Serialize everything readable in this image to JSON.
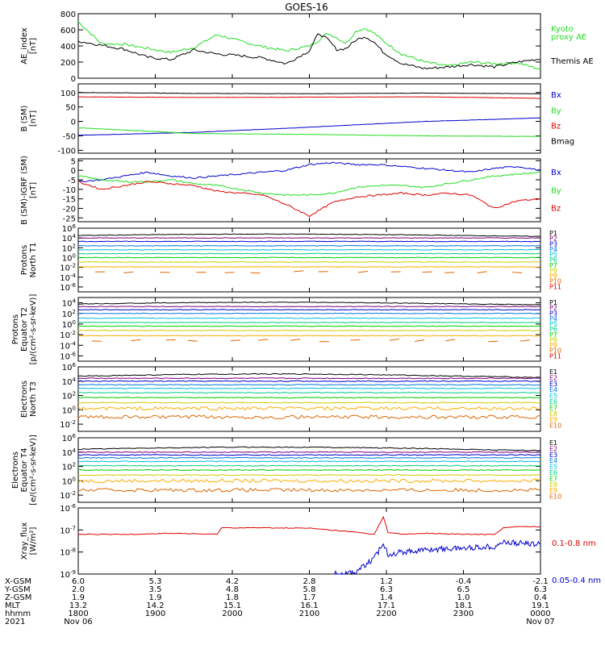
{
  "title": "GOES-16",
  "colors": {
    "black": "#000000",
    "green": "#22dd22",
    "blue": "#0000cc",
    "red": "#dd0000",
    "P": [
      "#000000",
      "#7a007a",
      "#0000cc",
      "#0077dd",
      "#00bbdd",
      "#00cc88",
      "#00cc00",
      "#cccc00",
      "#ffaa00",
      "#dd6600",
      "#dd0000"
    ],
    "E": [
      "#000000",
      "#7a007a",
      "#0000cc",
      "#0077dd",
      "#00bbdd",
      "#00cc88",
      "#00cc00",
      "#cccc00",
      "#ffaa00",
      "#dd6600",
      "#dd0000"
    ]
  },
  "chart_data": [
    {
      "type": "line",
      "id": "ae",
      "ylabel": [
        "AE_index",
        "[nT]"
      ],
      "ylim": [
        0,
        800
      ],
      "yticks": [
        "0",
        "200",
        "400",
        "600",
        "800"
      ],
      "legend": [
        {
          "text": "Kyoto",
          "color": "green"
        },
        {
          "text": "proxy AE",
          "color": "green"
        },
        {
          "text": "Themis AE",
          "color": "black"
        }
      ],
      "x": [
        0,
        0.05,
        0.1,
        0.15,
        0.2,
        0.25,
        0.3,
        0.35,
        0.4,
        0.45,
        0.5,
        0.52,
        0.54,
        0.56,
        0.58,
        0.6,
        0.62,
        0.64,
        0.66,
        0.68,
        0.7,
        0.75,
        0.8,
        0.85,
        0.9,
        0.95,
        1.0
      ],
      "series": [
        {
          "name": "Kyoto proxy AE",
          "color": "green",
          "values": [
            700,
            430,
            420,
            370,
            320,
            380,
            540,
            460,
            390,
            340,
            400,
            470,
            560,
            500,
            430,
            580,
            620,
            560,
            460,
            380,
            300,
            200,
            150,
            200,
            180,
            190,
            110
          ]
        },
        {
          "name": "Themis AE",
          "color": "black",
          "values": [
            460,
            410,
            360,
            260,
            230,
            350,
            300,
            280,
            250,
            180,
            340,
            560,
            480,
            350,
            370,
            470,
            520,
            450,
            320,
            250,
            180,
            120,
            140,
            170,
            140,
            200,
            240
          ]
        }
      ]
    },
    {
      "type": "line",
      "id": "bsm",
      "ylabel": [
        "B (SM)",
        "[nT]"
      ],
      "ylim": [
        -110,
        130
      ],
      "yticks": [
        "-100",
        "-50",
        "0",
        "50",
        "100"
      ],
      "ytick_values": [
        -100,
        -50,
        0,
        50,
        100
      ],
      "legend": [
        {
          "text": "Bx",
          "color": "blue"
        },
        {
          "text": "By",
          "color": "green"
        },
        {
          "text": "Bz",
          "color": "red"
        },
        {
          "text": "Bmag",
          "color": "black"
        }
      ],
      "x": [
        0,
        0.25,
        0.5,
        0.75,
        1.0
      ],
      "series": [
        {
          "name": "Bx",
          "color": "blue",
          "values": [
            -48,
            -38,
            -20,
            0,
            12
          ]
        },
        {
          "name": "By",
          "color": "green",
          "values": [
            -22,
            -42,
            -45,
            -50,
            -52
          ]
        },
        {
          "name": "Bz",
          "color": "red",
          "values": [
            85,
            83,
            84,
            85,
            80
          ]
        },
        {
          "name": "Bmag",
          "color": "black",
          "values": [
            100,
            97,
            96,
            98,
            96
          ]
        }
      ]
    },
    {
      "type": "line",
      "id": "bigrf",
      "ylabel": [
        "B (SM)-IGRF (SM)",
        "[nT]"
      ],
      "ylim": [
        -27,
        6
      ],
      "yticks": [
        "5",
        "0",
        "-5",
        "-10",
        "-15",
        "-20",
        "-25"
      ],
      "ytick_values": [
        5,
        0,
        -5,
        -10,
        -15,
        -20,
        -25
      ],
      "legend": [
        {
          "text": "Bx",
          "color": "blue"
        },
        {
          "text": "By",
          "color": "green"
        },
        {
          "text": "Bz",
          "color": "red"
        }
      ],
      "x": [
        0,
        0.05,
        0.1,
        0.15,
        0.2,
        0.25,
        0.3,
        0.35,
        0.4,
        0.45,
        0.5,
        0.55,
        0.6,
        0.65,
        0.7,
        0.75,
        0.8,
        0.85,
        0.9,
        0.95,
        1.0
      ],
      "series": [
        {
          "name": "Bx",
          "color": "blue",
          "values": [
            -6,
            -5,
            -3,
            -1,
            -3,
            -4,
            -3,
            -2,
            -1,
            0,
            3,
            4,
            3,
            3,
            2,
            1,
            0,
            -1,
            1,
            2,
            0
          ]
        },
        {
          "name": "By",
          "color": "green",
          "values": [
            -3,
            -5,
            -6,
            -6,
            -5,
            -7,
            -8,
            -10,
            -12,
            -13,
            -13,
            -12,
            -9,
            -8,
            -8,
            -9,
            -7,
            -5,
            -3,
            -2,
            -1
          ]
        },
        {
          "name": "Bz",
          "color": "red",
          "values": [
            -6,
            -10,
            -8,
            -6,
            -7,
            -8,
            -11,
            -12,
            -13,
            -18,
            -24,
            -17,
            -14,
            -13,
            -12,
            -13,
            -12,
            -13,
            -20,
            -16,
            -15
          ]
        }
      ]
    },
    {
      "type": "line",
      "id": "pn",
      "log": true,
      "ylabel": [
        "Protons",
        "North T1"
      ],
      "ylim_log": [
        -7,
        6
      ],
      "yticks_exp": [
        6,
        4,
        2,
        0,
        -2,
        -4,
        -6
      ],
      "legend": [
        "P1",
        "P2",
        "P3",
        "P4",
        "P5",
        "P6",
        "P7",
        "P8",
        "P9",
        "P10",
        "P11"
      ],
      "levels": [
        4.5,
        4.0,
        3.3,
        2.4,
        1.6,
        0.8,
        0.0,
        -0.9,
        -1.9,
        -3.0,
        -4.0
      ]
    },
    {
      "type": "line",
      "id": "pe",
      "log": true,
      "ylabel": [
        "Protons",
        "Equator T2",
        "[p/(cm²-s-sr-keV)]"
      ],
      "ylim_log": [
        -7,
        5
      ],
      "yticks_exp": [
        4,
        2,
        0,
        -2,
        -4,
        -6
      ],
      "legend": [
        "P1",
        "P2",
        "P3",
        "P4",
        "P5",
        "P6",
        "P7",
        "P8",
        "P9",
        "P10",
        "P11"
      ],
      "levels": [
        3.8,
        3.3,
        2.7,
        2.0,
        1.1,
        0.3,
        -0.4,
        -1.2,
        -2.2,
        -3.2,
        -4.2
      ]
    },
    {
      "type": "line",
      "id": "en",
      "log": true,
      "ylabel": [
        "Electrons",
        "North T3"
      ],
      "ylim_log": [
        -3,
        6
      ],
      "yticks_exp": [
        6,
        4,
        2,
        0,
        -2
      ],
      "legend": [
        "E1",
        "E2",
        "E3",
        "E4",
        "E5",
        "E6",
        "E7",
        "E8",
        "E9",
        "E10"
      ],
      "levels": [
        4.7,
        4.4,
        4.0,
        3.5,
        3.0,
        2.4,
        1.7,
        1.0,
        0.2,
        -1.0
      ]
    },
    {
      "type": "line",
      "id": "ee",
      "log": true,
      "ylabel": [
        "Electrons",
        "Equator T4",
        "[e/(cm²-s-sr-keV)]"
      ],
      "ylim_log": [
        -3,
        6
      ],
      "yticks_exp": [
        6,
        4,
        2,
        0,
        -2
      ],
      "legend": [
        "E1",
        "E2",
        "E3",
        "E4",
        "E5",
        "E6",
        "E7",
        "E8",
        "E9",
        "E10"
      ],
      "levels": [
        4.4,
        4.0,
        3.6,
        3.2,
        2.7,
        2.1,
        1.5,
        0.8,
        0.0,
        -1.3
      ]
    },
    {
      "type": "line",
      "id": "xray",
      "log": true,
      "ylabel": [
        "Xray_flux",
        "[W/m²]"
      ],
      "ylim_log": [
        -9,
        -6
      ],
      "yticks_exp": [
        -6,
        -7,
        -8,
        -9
      ],
      "legend": [
        {
          "text": "0.1-0.8 nm",
          "color": "red"
        },
        {
          "text": "0.05-0.4 nm",
          "color": "blue"
        }
      ],
      "x": [
        0,
        0.1,
        0.2,
        0.3,
        0.31,
        0.4,
        0.5,
        0.6,
        0.64,
        0.66,
        0.67,
        0.7,
        0.75,
        0.8,
        0.85,
        0.9,
        0.92,
        0.95,
        1.0
      ],
      "series": [
        {
          "name": "0.1-0.8 nm",
          "color": "red",
          "values": [
            -7.2,
            -7.2,
            -7.15,
            -7.2,
            -6.9,
            -6.9,
            -6.92,
            -7.1,
            -7.2,
            -6.4,
            -7.1,
            -7.2,
            -7.15,
            -7.18,
            -7.2,
            -7.2,
            -6.9,
            -6.85,
            -6.85
          ]
        },
        {
          "name": "0.05-0.4 nm",
          "color": "blue",
          "x": [
            0.55,
            0.6,
            0.64,
            0.66,
            0.67,
            0.7,
            0.75,
            0.8,
            0.85,
            0.9,
            0.92,
            0.95,
            1.0
          ],
          "values": [
            -9,
            -8.9,
            -8.3,
            -7.6,
            -8.1,
            -8.0,
            -7.9,
            -7.85,
            -7.8,
            -7.75,
            -7.55,
            -7.6,
            -7.65
          ]
        }
      ]
    }
  ],
  "ephemeris": {
    "labels": [
      "X-GSM",
      "Y-GSM",
      "Z-GSM",
      "MLT",
      "hhmm",
      "2021"
    ],
    "columns": [
      {
        "xgsm": "6.0",
        "ygsm": "2.0",
        "zgsm": "1.9",
        "mlt": "13.2",
        "hhmm": "1800",
        "date": "Nov 06"
      },
      {
        "xgsm": "5.3",
        "ygsm": "3.5",
        "zgsm": "1.9",
        "mlt": "14.2",
        "hhmm": "1900",
        "date": ""
      },
      {
        "xgsm": "4.2",
        "ygsm": "4.8",
        "zgsm": "1.8",
        "mlt": "15.1",
        "hhmm": "2000",
        "date": ""
      },
      {
        "xgsm": "2.8",
        "ygsm": "5.8",
        "zgsm": "1.7",
        "mlt": "16.1",
        "hhmm": "2100",
        "date": ""
      },
      {
        "xgsm": "1.2",
        "ygsm": "6.3",
        "zgsm": "1.4",
        "mlt": "17.1",
        "hhmm": "2200",
        "date": ""
      },
      {
        "xgsm": "-0.4",
        "ygsm": "6.5",
        "zgsm": "1.0",
        "mlt": "18.1",
        "hhmm": "2300",
        "date": ""
      },
      {
        "xgsm": "-2.1",
        "ygsm": "6.3",
        "zgsm": "0.4",
        "mlt": "19.1",
        "hhmm": "0000",
        "date": "Nov 07"
      }
    ]
  }
}
